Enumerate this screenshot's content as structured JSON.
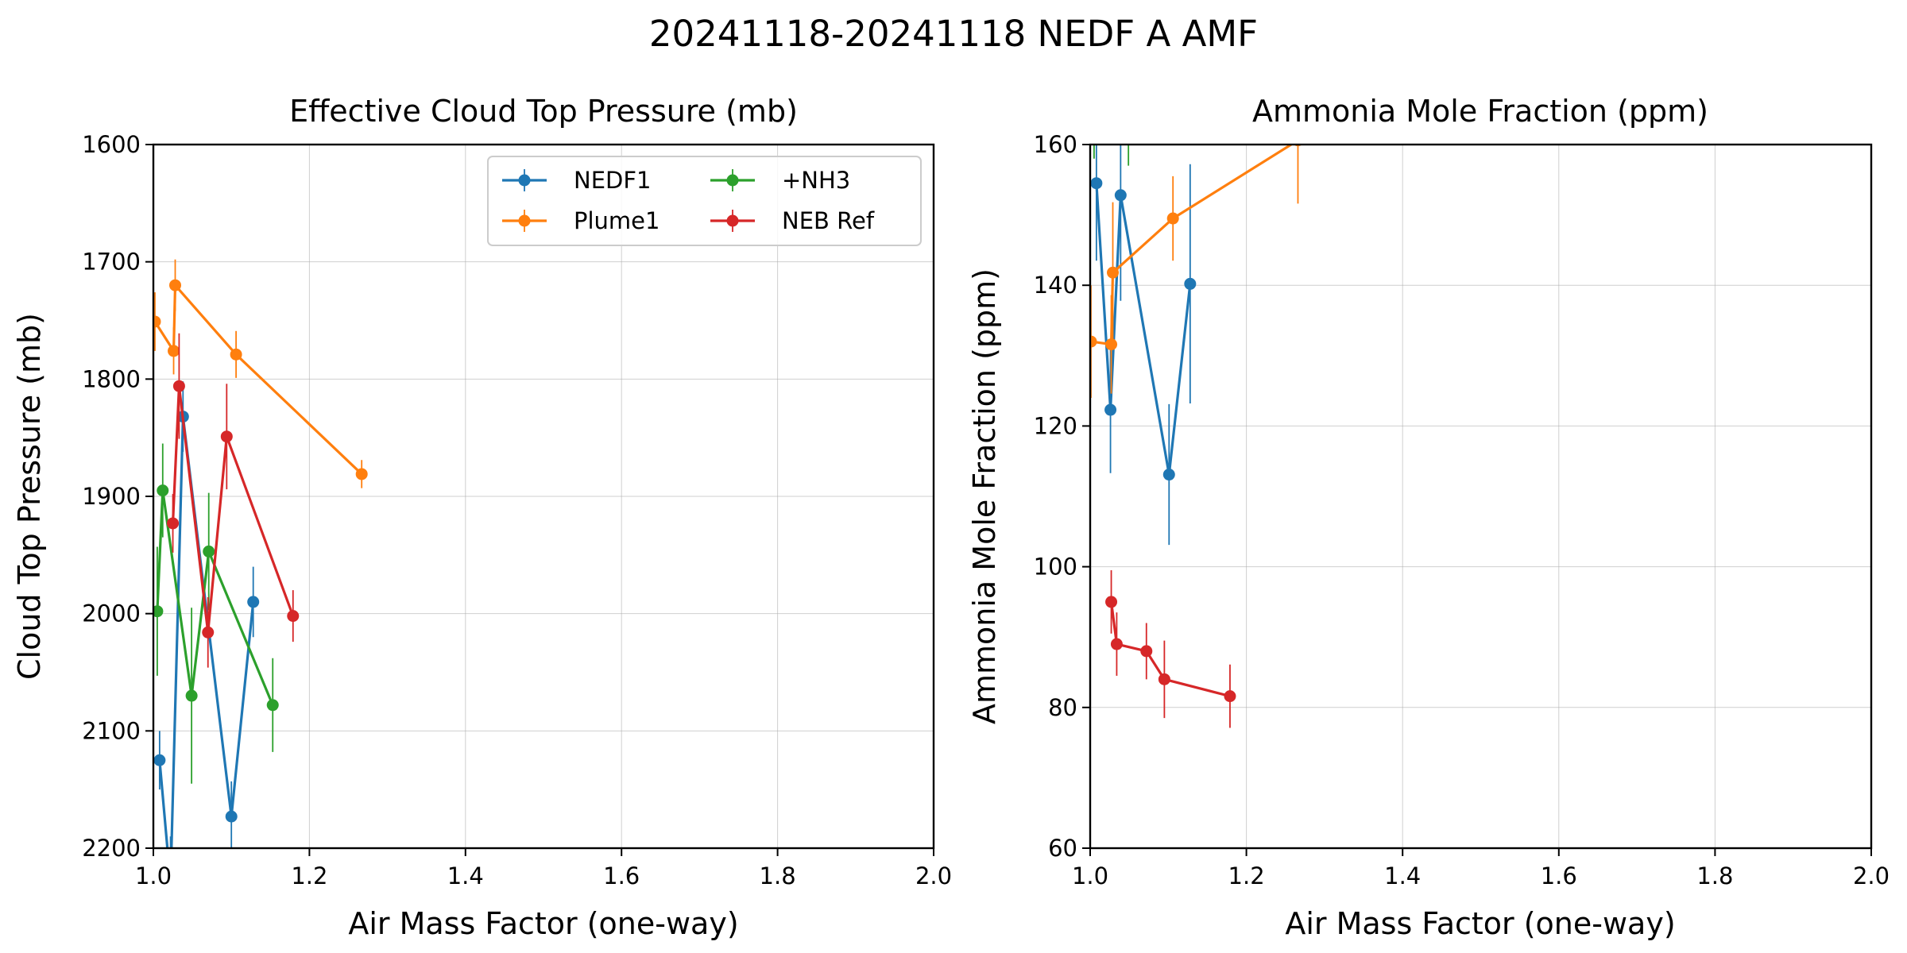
{
  "figure_title": "20241118-20241118 NEDF A AMF",
  "chart_data": [
    {
      "type": "line",
      "title": "Effective Cloud Top Pressure (mb)",
      "xlabel": "Air Mass Factor (one-way)",
      "ylabel": "Cloud Top Pressure (mb)",
      "xlim": [
        1.0,
        2.0
      ],
      "ylim": [
        2200,
        1600
      ],
      "y_inverted": true,
      "xticks": [
        "1.0",
        "1.2",
        "1.4",
        "1.6",
        "1.8",
        "2.0"
      ],
      "yticks": [
        "1600",
        "1700",
        "1800",
        "1900",
        "2000",
        "2100",
        "2200"
      ],
      "grid": true,
      "legend": {
        "placement": "upper-right",
        "columns": 2
      },
      "series": [
        {
          "name": "NEDF1",
          "color": "#1f77b4",
          "points": [
            [
              1.008,
              2125,
              25
            ],
            [
              1.022,
              2230,
              40
            ],
            [
              1.038,
              1832,
              30
            ],
            [
              1.1,
              2173,
              30
            ],
            [
              1.128,
              1990,
              30
            ]
          ]
        },
        {
          "name": "Plume1",
          "color": "#ff7f0e",
          "points": [
            [
              1.002,
              1751,
              25
            ],
            [
              1.026,
              1776,
              20
            ],
            [
              1.028,
              1720,
              22
            ],
            [
              1.106,
              1779,
              20
            ],
            [
              1.267,
              1881,
              12
            ]
          ]
        },
        {
          "name": "+NH3",
          "color": "#2ca02c",
          "points": [
            [
              1.005,
              1998,
              55
            ],
            [
              1.012,
              1895,
              40
            ],
            [
              1.049,
              2070,
              75
            ],
            [
              1.071,
              1947,
              50
            ],
            [
              1.153,
              2078,
              40
            ]
          ]
        },
        {
          "name": "NEB Ref",
          "color": "#d62728",
          "points": [
            [
              1.025,
              1923,
              25
            ],
            [
              1.033,
              1806,
              45
            ],
            [
              1.07,
              2016,
              30
            ],
            [
              1.094,
              1849,
              45
            ],
            [
              1.179,
              2002,
              22
            ]
          ]
        }
      ]
    },
    {
      "type": "line",
      "title": "Ammonia Mole Fraction (ppm)",
      "xlabel": "Air Mass Factor (one-way)",
      "ylabel": "Ammonia Mole Fraction (ppm)",
      "xlim": [
        1.0,
        2.0
      ],
      "ylim": [
        60,
        160
      ],
      "xticks": [
        "1.0",
        "1.2",
        "1.4",
        "1.6",
        "1.8",
        "2.0"
      ],
      "yticks": [
        "60",
        "80",
        "100",
        "120",
        "140",
        "160"
      ],
      "grid": true,
      "series": [
        {
          "name": "NEDF1",
          "color": "#1f77b4",
          "points": [
            [
              1.008,
              154.5,
              11
            ],
            [
              1.026,
              122.3,
              9
            ],
            [
              1.039,
              152.8,
              15
            ],
            [
              1.101,
              113.1,
              10
            ],
            [
              1.128,
              140.2,
              17
            ]
          ]
        },
        {
          "name": "Plume1",
          "color": "#ff7f0e",
          "points": [
            [
              1.001,
              132.0,
              8
            ],
            [
              1.027,
              131.6,
              7
            ],
            [
              1.029,
              141.8,
              10
            ],
            [
              1.106,
              149.5,
              6
            ],
            [
              1.266,
              160.6,
              9
            ]
          ]
        },
        {
          "name": "+NH3",
          "color": "#2ca02c",
          "points": [
            [
              1.005,
              168.0,
              10
            ],
            [
              1.049,
              165.0,
              8
            ]
          ]
        },
        {
          "name": "NEB Ref",
          "color": "#d62728",
          "points": [
            [
              1.027,
              95.0,
              4.5
            ],
            [
              1.034,
              89.0,
              4.5
            ],
            [
              1.072,
              88.0,
              4
            ],
            [
              1.095,
              84.0,
              5.5
            ],
            [
              1.179,
              81.6,
              4.5
            ]
          ]
        }
      ]
    }
  ]
}
